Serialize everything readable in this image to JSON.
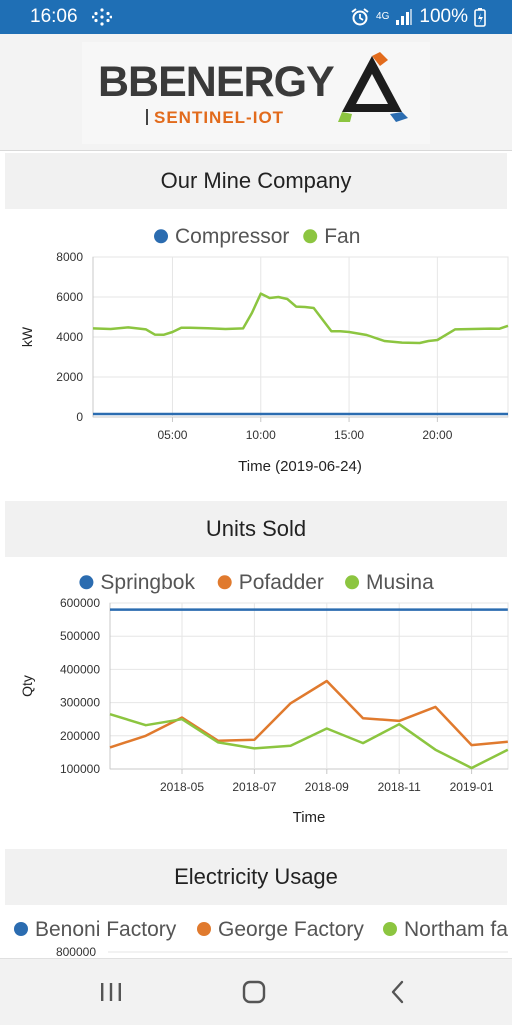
{
  "status_bar": {
    "time": "16:06",
    "network": "4G",
    "battery": "100%"
  },
  "brand": {
    "name": "BBENERGY",
    "tagline": "SENTINEL-IOT"
  },
  "sections": [
    {
      "title": "Our Mine Company"
    },
    {
      "title": "Units Sold"
    },
    {
      "title": "Electricity Usage"
    }
  ],
  "chart_data": [
    {
      "type": "line",
      "legend": [
        "Compressor",
        "Fan"
      ],
      "ylabel": "kW",
      "xlabel": "Time (2019-06-24)",
      "ylim": [
        0,
        8000
      ],
      "yticks": [
        0,
        2000,
        4000,
        6000,
        8000
      ],
      "xlim": [
        0.5,
        24
      ],
      "xticks": [
        5,
        10,
        15,
        20
      ],
      "xtick_labels": [
        "05:00",
        "10:00",
        "15:00",
        "20:00"
      ],
      "grid": true,
      "legend_position": "top",
      "colors": {
        "Compressor": "#2b6cb0",
        "Fan": "#8cc540"
      },
      "series": [
        {
          "name": "Compressor",
          "x": [
            0.5,
            24
          ],
          "y": [
            150,
            150
          ]
        },
        {
          "name": "Fan",
          "x": [
            0.5,
            1.5,
            2.5,
            3.5,
            4.0,
            4.5,
            5.0,
            5.5,
            6.0,
            7.0,
            8.0,
            9.0,
            9.5,
            10.0,
            10.5,
            11.0,
            11.5,
            12.0,
            12.5,
            13.0,
            14.0,
            14.5,
            15.0,
            16.0,
            17.0,
            18.0,
            19.0,
            19.5,
            20.0,
            21.0,
            22.0,
            23.0,
            23.5,
            24.0
          ],
          "y": [
            4430,
            4400,
            4480,
            4380,
            4120,
            4110,
            4250,
            4460,
            4460,
            4440,
            4400,
            4430,
            5200,
            6170,
            5950,
            6000,
            5900,
            5520,
            5500,
            5450,
            4290,
            4290,
            4250,
            4100,
            3800,
            3720,
            3700,
            3800,
            3850,
            4380,
            4400,
            4420,
            4410,
            4560
          ]
        }
      ]
    },
    {
      "type": "line",
      "legend": [
        "Springbok",
        "Pofadder",
        "Musina"
      ],
      "ylabel": "Qty",
      "xlabel": "Time",
      "ylim": [
        100000,
        600000
      ],
      "yticks": [
        100000,
        200000,
        300000,
        400000,
        500000,
        600000
      ],
      "x_categories": [
        "2018-03",
        "2018-04",
        "2018-05",
        "2018-06",
        "2018-07",
        "2018-08",
        "2018-09",
        "2018-10",
        "2018-11",
        "2018-12",
        "2019-01",
        "2019-02"
      ],
      "xtick_labels": [
        "2018-05",
        "2018-07",
        "2018-09",
        "2018-11",
        "2019-01"
      ],
      "grid": true,
      "legend_position": "top",
      "colors": {
        "Springbok": "#2b6cb0",
        "Pofadder": "#e07a2e",
        "Musina": "#8cc540"
      },
      "series": [
        {
          "name": "Springbok",
          "values": [
            580000,
            580000,
            580000,
            580000,
            580000,
            580000,
            580000,
            580000,
            580000,
            580000,
            580000,
            580000
          ]
        },
        {
          "name": "Pofadder",
          "values": [
            165000,
            200000,
            255000,
            185000,
            188000,
            298000,
            365000,
            253000,
            245000,
            287000,
            172000,
            182000
          ]
        },
        {
          "name": "Musina",
          "values": [
            265000,
            232000,
            250000,
            180000,
            162000,
            170000,
            222000,
            178000,
            235000,
            158000,
            103000,
            158000
          ]
        }
      ]
    },
    {
      "type": "line",
      "legend": [
        "Benoni Factory",
        "George Factory",
        "Northam fa"
      ],
      "ylim": [
        0,
        800000
      ],
      "yticks": [
        800000
      ],
      "legend_position": "top",
      "colors": {
        "Benoni Factory": "#2b6cb0",
        "George Factory": "#e07a2e",
        "Northam fa": "#8cc540"
      },
      "series": []
    }
  ],
  "nav": {
    "recents": "recents-icon",
    "home": "home-icon",
    "back": "back-icon"
  }
}
